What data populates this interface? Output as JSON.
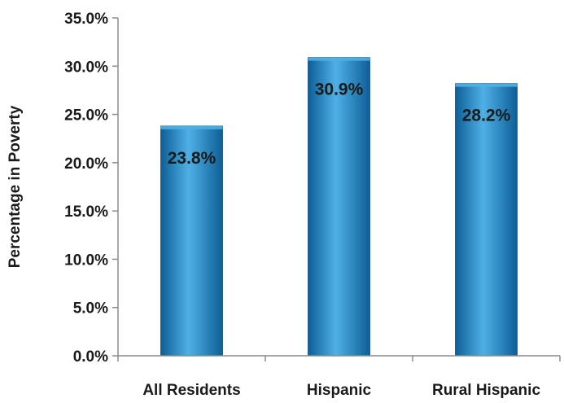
{
  "chart_data": {
    "type": "bar",
    "categories": [
      "All Residents",
      "Hispanic",
      "Rural Hispanic"
    ],
    "values": [
      23.8,
      30.9,
      28.2
    ],
    "data_labels": [
      "23.8%",
      "30.9%",
      "28.2%"
    ],
    "title": "",
    "xlabel": "",
    "ylabel": "Percentage in Poverty",
    "ylim": [
      0,
      35
    ],
    "yticks": [
      0,
      5,
      10,
      15,
      20,
      25,
      30,
      35
    ],
    "ytick_labels": [
      "0.0%",
      "5.0%",
      "10.0%",
      "15.0%",
      "20.0%",
      "25.0%",
      "30.0%",
      "35.0%"
    ],
    "grid": false,
    "legend": "none",
    "colors": {
      "bar": "#1a82c4",
      "bar_light": "#4fb0e6",
      "bar_dark": "#0d5f96",
      "axis": "#8c8c8c",
      "text": "#1a1a1a"
    }
  }
}
